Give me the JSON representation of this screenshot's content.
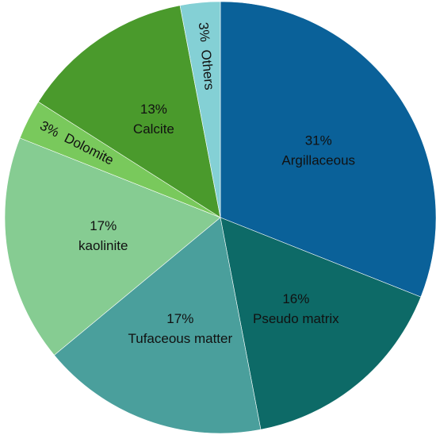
{
  "chart_data": {
    "type": "pie",
    "categories": [
      "Argillaceous",
      "Pseudo matrix",
      "Tufaceous  matter",
      "kaolinite",
      "Dolomite",
      "Calcite",
      "Others"
    ],
    "values": [
      31,
      16,
      17,
      17,
      3,
      13,
      3
    ],
    "value_labels": [
      "31%",
      "16%",
      "17%",
      "17%",
      "3%",
      "13%",
      "3%"
    ],
    "colors": [
      "#0a6199",
      "#0d6a67",
      "#4a9f9c",
      "#86cc92",
      "#79c95c",
      "#4a9a2c",
      "#84d0d5"
    ]
  }
}
